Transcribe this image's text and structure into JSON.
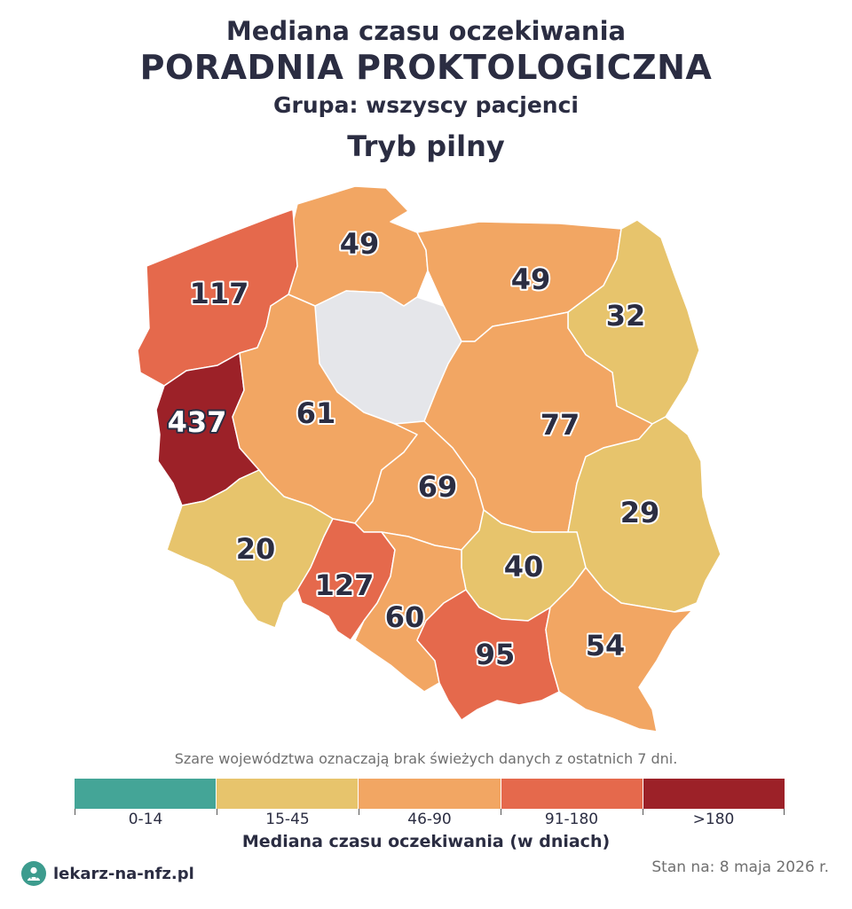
{
  "header": {
    "line1": "Mediana czasu oczekiwania",
    "line2": "PORADNIA PROKTOLOGICZNA",
    "line3": "Grupa: wszyscy pacjenci",
    "line4": "Tryb pilny"
  },
  "regions": [
    {
      "id": "pomorskie",
      "value": "49",
      "category": "46-90"
    },
    {
      "id": "warminsko-mazurskie",
      "value": "49",
      "category": "46-90"
    },
    {
      "id": "zachodniopomorskie",
      "value": "117",
      "category": "91-180"
    },
    {
      "id": "podlaskie",
      "value": "32",
      "category": "15-45"
    },
    {
      "id": "kujawsko-pomorskie",
      "value": "",
      "category": "no-data"
    },
    {
      "id": "lubuskie",
      "value": "437",
      "category": ">180"
    },
    {
      "id": "wielkopolskie",
      "value": "61",
      "category": "46-90"
    },
    {
      "id": "mazowieckie",
      "value": "77",
      "category": "46-90"
    },
    {
      "id": "lodzkie",
      "value": "69",
      "category": "46-90"
    },
    {
      "id": "lubelskie",
      "value": "29",
      "category": "15-45"
    },
    {
      "id": "dolnoslaskie",
      "value": "20",
      "category": "15-45"
    },
    {
      "id": "opolskie",
      "value": "127",
      "category": "91-180"
    },
    {
      "id": "swietokrzyskie",
      "value": "40",
      "category": "15-45"
    },
    {
      "id": "slaskie",
      "value": "60",
      "category": "46-90"
    },
    {
      "id": "malopolskie",
      "value": "95",
      "category": "91-180"
    },
    {
      "id": "podkarpackie",
      "value": "54",
      "category": "46-90"
    }
  ],
  "colors": {
    "0-14": "#44a597",
    "15-45": "#e7c46c",
    "46-90": "#f2a663",
    "91-180": "#e5694c",
    ">180": "#9c2128",
    "no-data": "#e5e6ea"
  },
  "note": "Szare województwa oznaczają brak świeżych danych z ostatnich 7 dni.",
  "legend": {
    "title": "Mediana czasu oczekiwania (w dniach)",
    "items": [
      {
        "label": "0-14",
        "color": "#44a597"
      },
      {
        "label": "15-45",
        "color": "#e7c46c"
      },
      {
        "label": "46-90",
        "color": "#f2a663"
      },
      {
        "label": "91-180",
        "color": "#e5694c"
      },
      {
        "label": ">180",
        "color": "#9c2128"
      }
    ]
  },
  "footer": {
    "brand": "lekarz-na-nfz.pl",
    "brand_icon": "doctor-icon",
    "date": "Stan na: 8 maja 2026 r."
  }
}
